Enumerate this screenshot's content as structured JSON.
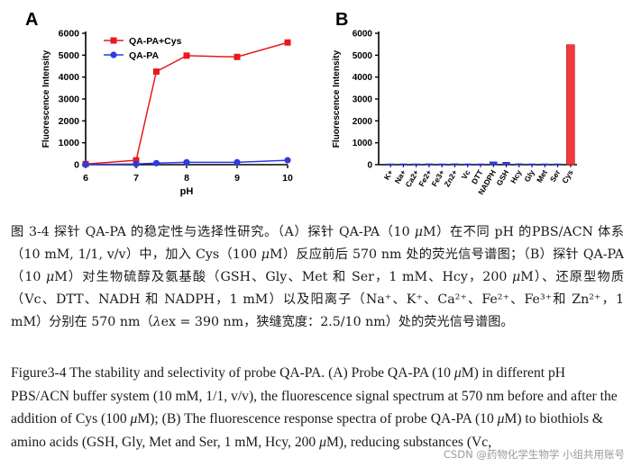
{
  "chart_data": [
    {
      "type": "line",
      "panel_label": "A",
      "x": [
        6,
        7,
        7.4,
        8,
        9,
        10
      ],
      "series": [
        {
          "name": "QA-PA+Cys",
          "color": "#e8191c",
          "marker": "square",
          "values": [
            30,
            200,
            4250,
            4980,
            4920,
            5580
          ]
        },
        {
          "name": "QA-PA",
          "color": "#2e3be0",
          "marker": "circle",
          "values": [
            10,
            30,
            70,
            110,
            110,
            200
          ]
        }
      ],
      "xlabel": "pH",
      "ylabel": "Fluorescence Intensity",
      "xticks": [
        "6",
        "7",
        "8",
        "9",
        "10"
      ],
      "yticks": [
        "0",
        "1000",
        "2000",
        "3000",
        "4000",
        "5000",
        "6000"
      ],
      "xlim": [
        6,
        10
      ],
      "ylim": [
        0,
        6000
      ],
      "legend_position": "top-left"
    },
    {
      "type": "bar",
      "panel_label": "B",
      "categories": [
        "K+",
        "Na+",
        "Ca2+",
        "Fe2+",
        "Fe3+",
        "Zn2+",
        "Vc",
        "DTT",
        "NADPH",
        "GSH",
        "Hcy",
        "Gly",
        "Met",
        "Ser",
        "Cys"
      ],
      "values": [
        40,
        40,
        40,
        45,
        40,
        45,
        40,
        40,
        130,
        110,
        45,
        40,
        40,
        40,
        5480
      ],
      "bar_colors": [
        "#2e3be0",
        "#2e3be0",
        "#2e3be0",
        "#2e3be0",
        "#2e3be0",
        "#2e3be0",
        "#2e3be0",
        "#2e3be0",
        "#2e3be0",
        "#2e3be0",
        "#2e3be0",
        "#2e3be0",
        "#2e3be0",
        "#2e3be0",
        "#ef3a3e"
      ],
      "ylabel": "Fluorescence Intensity",
      "yticks": [
        "0",
        "1000",
        "2000",
        "3000",
        "4000",
        "5000",
        "6000"
      ],
      "ylim": [
        0,
        6000
      ]
    }
  ],
  "caption": {
    "zh_1": "图 3-4 探针 QA-PA 的稳定性与选择性研究。（A）探针 QA-PA（10 ",
    "zh_mu1": "μ",
    "zh_2": "M）在不同 pH 的PBS/ACN 体系（10 mM, 1/1, v/v）中，加入 Cys（100 ",
    "zh_mu2": "μ",
    "zh_3": "M）反应前后 570 nm 处的荧光信号谱图；（B）探针 QA-PA（10 ",
    "zh_mu3": "μ",
    "zh_4": "M）对生物硫醇及氨基酸（GSH、Gly、Met 和 Ser，1 mM、Hcy，200 ",
    "zh_mu4": "μ",
    "zh_5": "M）、还原型物质（Vc、DTT、NADH 和 NADPH，1 mM）以及阳离子（Na⁺、K⁺、Ca²⁺、Fe²⁺、Fe³⁺和 Zn²⁺，1 mM）分别在 570 nm（",
    "zh_lambda": "λ",
    "zh_6": "ex = 390 nm，狭缝宽度：2.5/10 nm）处的荧光信号谱图。",
    "en_1": "Figure3-4 The stability and selectivity of probe QA-PA. (A) Probe QA-PA (10 ",
    "en_mu1": "μ",
    "en_2": "M) in different pH PBS/ACN buffer system (10 mM, 1/1, v/v), the fluorescence signal spectrum at 570 nm before and after the addition of Cys (100 ",
    "en_mu2": "μ",
    "en_3": "M); (B) The fluorescence response spectra of probe QA-PA (10 ",
    "en_mu3": "μ",
    "en_4": "M) to biothiols & amino acids (GSH, Gly, Met and Ser, 1 mM, Hcy, 200 ",
    "en_mu4": "μ",
    "en_5": "M), reducing substances (Vc,"
  },
  "watermark": "CSDN @药物化学生物学 小组共用账号"
}
